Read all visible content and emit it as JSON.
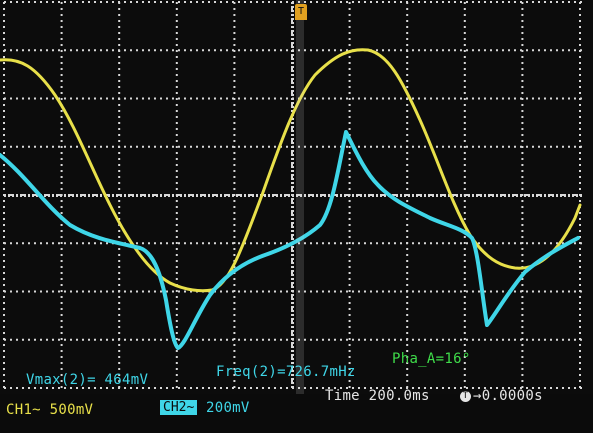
{
  "screen": {
    "trigger_marker": "T",
    "measurements": {
      "vmax": "Vmax(2)= 464mV",
      "freq": "Freq(2)=726.7mHz",
      "phase": "Pha_A=16°"
    },
    "status": {
      "ch1": "CH1~ 500mV",
      "ch2_badge": "CH2~",
      "ch2_scale": "200mV",
      "time": "Time 200.0ms",
      "trigger_icon": "T",
      "trigger_offset": "→0.0000s"
    }
  },
  "colors": {
    "ch1_yellow": "#e8e04a",
    "ch2_cyan": "#3fd6e8",
    "grid": "#d8d8d8",
    "phase_green": "#3fdc4a"
  },
  "icons": {
    "trigger-marker-icon": "T",
    "trigger-time-icon": "T"
  }
}
